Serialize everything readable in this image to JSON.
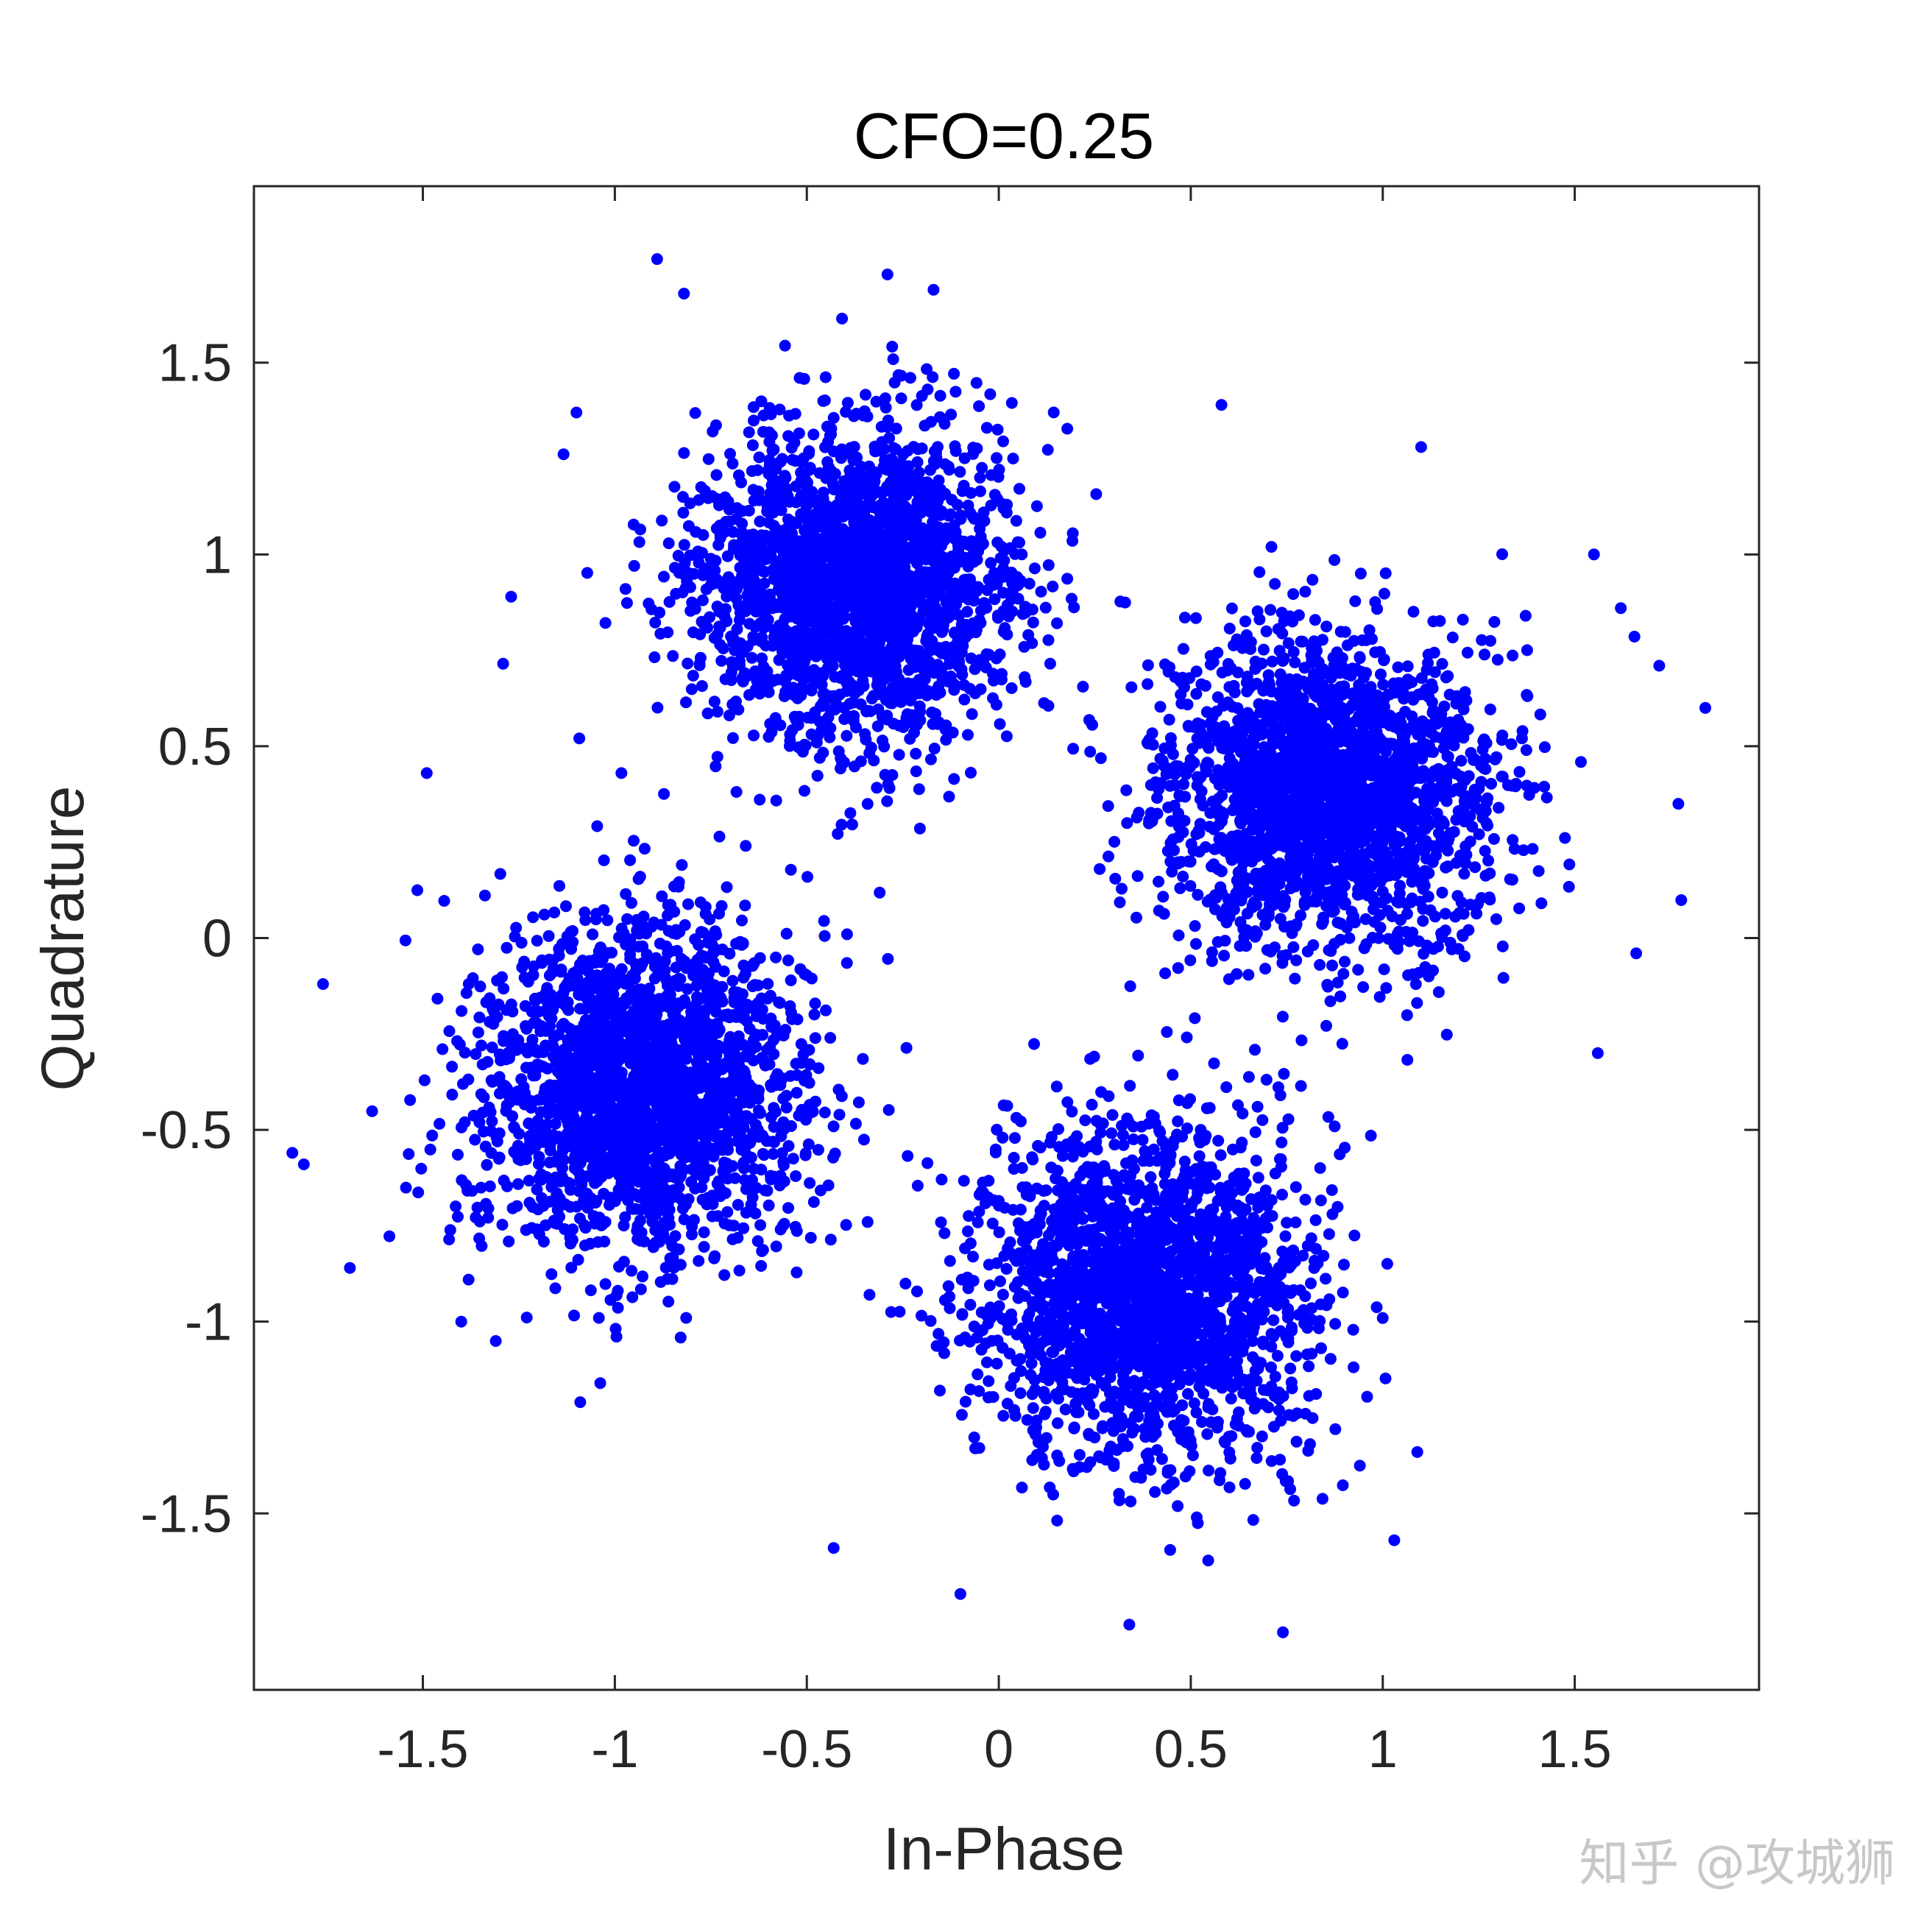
{
  "chart_data": {
    "type": "scatter",
    "title": "CFO=0.25",
    "xlabel": "In-Phase",
    "ylabel": "Quadrature",
    "xlim": [
      -1.94,
      1.98
    ],
    "ylim": [
      -1.96,
      1.96
    ],
    "xticks": [
      -1.5,
      -1,
      -0.5,
      0,
      0.5,
      1,
      1.5
    ],
    "xtick_labels": [
      "-1.5",
      "-1",
      "-0.5",
      "0",
      "0.5",
      "1",
      "1.5"
    ],
    "yticks": [
      -1.5,
      -1,
      -0.5,
      0,
      0.5,
      1,
      1.5
    ],
    "ytick_labels": [
      "-1.5",
      "-1",
      "-0.5",
      "0",
      "0.5",
      "1",
      "1.5"
    ],
    "grid": false,
    "legend": null,
    "marker_color": "#0000ff",
    "series": [
      {
        "clusters": [
          {
            "center": [
              -0.38,
              0.92
            ],
            "spread": 0.21
          },
          {
            "center": [
              0.86,
              0.38
            ],
            "spread": 0.21
          },
          {
            "center": [
              -0.92,
              -0.38
            ],
            "spread": 0.21
          },
          {
            "center": [
              0.38,
              -0.92
            ],
            "spread": 0.21
          }
        ],
        "outliers": [
          [
            -0.89,
            1.77
          ],
          [
            -0.29,
            1.73
          ],
          [
            -0.82,
            1.68
          ],
          [
            -0.17,
            1.69
          ],
          [
            1.84,
            0.6
          ],
          [
            1.77,
            0.35
          ],
          [
            1.72,
            0.71
          ],
          [
            -1.84,
            -0.56
          ],
          [
            -1.81,
            -0.59
          ],
          [
            -1.76,
            -0.12
          ],
          [
            -1.69,
            -0.86
          ],
          [
            0.74,
            -1.81
          ],
          [
            0.34,
            -1.79
          ],
          [
            -0.43,
            -1.59
          ],
          [
            1.03,
            -1.57
          ],
          [
            0.58,
            1.39
          ],
          [
            1.1,
            1.28
          ],
          [
            -1.1,
            1.37
          ],
          [
            -1.27,
            0.89
          ],
          [
            -1.49,
            0.43
          ],
          [
            1.62,
            0.86
          ],
          [
            1.66,
            -0.04
          ],
          [
            1.56,
            -0.3
          ],
          [
            1.09,
            -1.34
          ],
          [
            -1.09,
            -1.21
          ],
          [
            -1.4,
            -1.0
          ],
          [
            -0.1,
            -1.71
          ],
          [
            1.55,
            1.0
          ]
        ]
      }
    ]
  },
  "watermark": "知乎 @攻城狮"
}
